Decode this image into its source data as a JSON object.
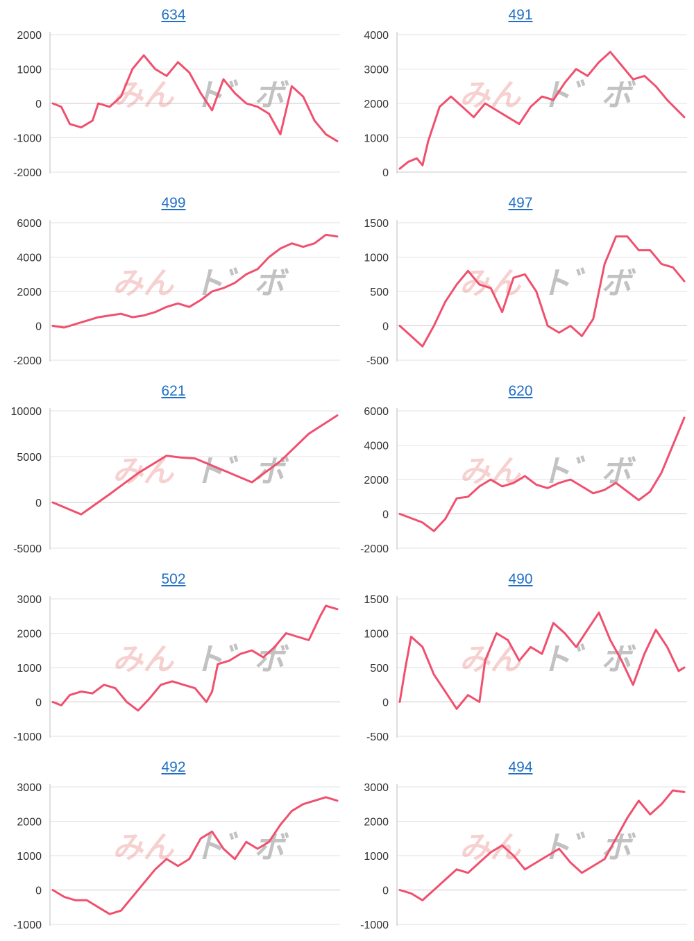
{
  "watermark": {
    "part1": "みん",
    "part2": "ト゛ボ"
  },
  "colors": {
    "line": "#f0506e",
    "grid": "#e2e2e2",
    "axis": "#bdbdbd",
    "link": "#1f6fc4"
  },
  "chart_data": [
    {
      "type": "line",
      "title": "634",
      "ylim": [
        -2000,
        2000
      ],
      "yticks": [
        2000,
        1000,
        0,
        -1000,
        -2000
      ],
      "grid": true,
      "x": [
        0,
        3,
        6,
        10,
        14,
        16,
        20,
        24,
        28,
        32,
        36,
        40,
        44,
        48,
        52,
        56,
        60,
        64,
        68,
        72,
        76,
        80,
        84,
        88,
        92,
        96,
        100
      ],
      "y": [
        0,
        -100,
        -600,
        -700,
        -500,
        0,
        -100,
        200,
        1000,
        1400,
        1000,
        800,
        1200,
        900,
        300,
        -200,
        700,
        300,
        0,
        -100,
        -300,
        -900,
        500,
        200,
        -500,
        -900,
        -1100
      ]
    },
    {
      "type": "line",
      "title": "491",
      "ylim": [
        0,
        4000
      ],
      "yticks": [
        4000,
        3000,
        2000,
        1000,
        0
      ],
      "grid": true,
      "x": [
        0,
        3,
        6,
        8,
        10,
        14,
        18,
        22,
        26,
        30,
        34,
        38,
        42,
        46,
        50,
        54,
        58,
        62,
        66,
        70,
        74,
        78,
        82,
        86,
        90,
        94,
        100
      ],
      "y": [
        100,
        300,
        400,
        200,
        900,
        1900,
        2200,
        1900,
        1600,
        2000,
        1800,
        1600,
        1400,
        1900,
        2200,
        2100,
        2600,
        3000,
        2800,
        3200,
        3500,
        3100,
        2700,
        2800,
        2500,
        2100,
        1600
      ]
    },
    {
      "type": "line",
      "title": "499",
      "ylim": [
        -2000,
        6000
      ],
      "yticks": [
        6000,
        4000,
        2000,
        0,
        -2000
      ],
      "grid": true,
      "x": [
        0,
        4,
        8,
        12,
        16,
        20,
        24,
        28,
        32,
        36,
        40,
        44,
        48,
        52,
        56,
        60,
        64,
        68,
        72,
        76,
        80,
        84,
        88,
        92,
        96,
        100
      ],
      "y": [
        0,
        -100,
        100,
        300,
        500,
        600,
        700,
        500,
        600,
        800,
        1100,
        1300,
        1100,
        1500,
        2000,
        2200,
        2500,
        3000,
        3300,
        4000,
        4500,
        4800,
        4600,
        4800,
        5300,
        5200
      ]
    },
    {
      "type": "line",
      "title": "497",
      "ylim": [
        -500,
        1500
      ],
      "yticks": [
        1500,
        1000,
        500,
        0,
        -500
      ],
      "grid": true,
      "x": [
        0,
        4,
        8,
        12,
        16,
        20,
        24,
        28,
        32,
        36,
        40,
        44,
        48,
        52,
        56,
        60,
        64,
        68,
        72,
        76,
        80,
        84,
        88,
        92,
        96,
        100
      ],
      "y": [
        0,
        -150,
        -300,
        0,
        350,
        600,
        800,
        600,
        550,
        200,
        700,
        750,
        500,
        0,
        -100,
        0,
        -150,
        100,
        900,
        1300,
        1300,
        1100,
        1100,
        900,
        850,
        650
      ]
    },
    {
      "type": "line",
      "title": "621",
      "ylim": [
        -5000,
        10000
      ],
      "yticks": [
        10000,
        5000,
        0,
        -5000
      ],
      "grid": true,
      "x": [
        0,
        10,
        20,
        30,
        40,
        45,
        50,
        60,
        70,
        80,
        90,
        100
      ],
      "y": [
        0,
        -1300,
        900,
        3200,
        5100,
        4900,
        4800,
        3500,
        2200,
        4500,
        7500,
        9500
      ]
    },
    {
      "type": "line",
      "title": "620",
      "ylim": [
        -2000,
        6000
      ],
      "yticks": [
        6000,
        4000,
        2000,
        0,
        -2000
      ],
      "grid": true,
      "x": [
        0,
        8,
        12,
        16,
        20,
        24,
        28,
        32,
        36,
        40,
        44,
        48,
        52,
        56,
        60,
        64,
        68,
        72,
        76,
        80,
        84,
        88,
        92,
        96,
        100
      ],
      "y": [
        0,
        -500,
        -1000,
        -300,
        900,
        1000,
        1600,
        2000,
        1600,
        1800,
        2200,
        1700,
        1500,
        1800,
        2000,
        1600,
        1200,
        1400,
        1800,
        1300,
        800,
        1300,
        2400,
        4000,
        5600
      ]
    },
    {
      "type": "line",
      "title": "502",
      "ylim": [
        -1000,
        3000
      ],
      "yticks": [
        3000,
        2000,
        1000,
        0,
        -1000
      ],
      "grid": true,
      "x": [
        0,
        3,
        6,
        10,
        14,
        18,
        22,
        26,
        30,
        34,
        38,
        42,
        46,
        50,
        54,
        56,
        58,
        62,
        66,
        70,
        74,
        78,
        82,
        86,
        90,
        94,
        96,
        98,
        100
      ],
      "y": [
        0,
        -100,
        200,
        300,
        250,
        500,
        400,
        0,
        -250,
        100,
        500,
        600,
        500,
        400,
        0,
        300,
        1100,
        1200,
        1400,
        1500,
        1300,
        1600,
        2000,
        1900,
        1800,
        2500,
        2800,
        2750,
        2700
      ]
    },
    {
      "type": "line",
      "title": "490",
      "ylim": [
        -500,
        1500
      ],
      "yticks": [
        1500,
        1000,
        500,
        0,
        -500
      ],
      "grid": true,
      "x": [
        0,
        2,
        4,
        8,
        12,
        16,
        20,
        24,
        28,
        30,
        34,
        38,
        42,
        46,
        50,
        54,
        58,
        62,
        66,
        70,
        74,
        78,
        82,
        86,
        90,
        94,
        98,
        100
      ],
      "y": [
        0,
        500,
        950,
        800,
        400,
        150,
        -100,
        100,
        0,
        600,
        1000,
        900,
        600,
        800,
        700,
        1150,
        1000,
        800,
        1050,
        1300,
        900,
        600,
        250,
        700,
        1050,
        800,
        450,
        500
      ]
    },
    {
      "type": "line",
      "title": "492",
      "ylim": [
        -1000,
        3000
      ],
      "yticks": [
        3000,
        2000,
        1000,
        0,
        -1000
      ],
      "grid": true,
      "x": [
        0,
        4,
        8,
        12,
        16,
        20,
        24,
        28,
        32,
        36,
        40,
        44,
        48,
        52,
        56,
        60,
        64,
        68,
        72,
        76,
        80,
        84,
        88,
        92,
        96,
        100
      ],
      "y": [
        0,
        -200,
        -300,
        -300,
        -500,
        -700,
        -600,
        -200,
        200,
        600,
        900,
        700,
        900,
        1500,
        1700,
        1200,
        900,
        1400,
        1200,
        1400,
        1900,
        2300,
        2500,
        2600,
        2700,
        2600
      ]
    },
    {
      "type": "line",
      "title": "494",
      "ylim": [
        -1000,
        3000
      ],
      "yticks": [
        3000,
        2000,
        1000,
        0,
        -1000
      ],
      "grid": true,
      "x": [
        0,
        4,
        8,
        12,
        16,
        20,
        24,
        28,
        32,
        36,
        40,
        44,
        48,
        52,
        56,
        60,
        64,
        68,
        72,
        76,
        80,
        84,
        88,
        92,
        96,
        100
      ],
      "y": [
        0,
        -100,
        -300,
        0,
        300,
        600,
        500,
        800,
        1100,
        1300,
        1000,
        600,
        800,
        1000,
        1200,
        800,
        500,
        700,
        900,
        1500,
        2100,
        2600,
        2200,
        2500,
        2900,
        2850
      ]
    }
  ]
}
